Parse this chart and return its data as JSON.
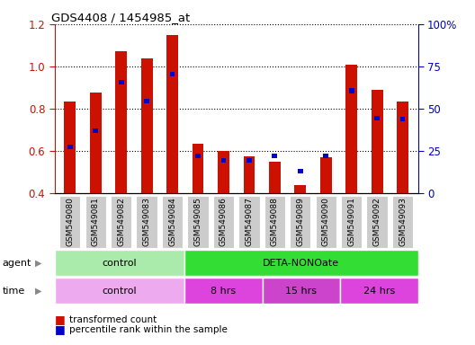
{
  "title": "GDS4408 / 1454985_at",
  "samples": [
    "GSM549080",
    "GSM549081",
    "GSM549082",
    "GSM549083",
    "GSM549084",
    "GSM549085",
    "GSM549086",
    "GSM549087",
    "GSM549088",
    "GSM549089",
    "GSM549090",
    "GSM549091",
    "GSM549092",
    "GSM549093"
  ],
  "red_values": [
    0.835,
    0.875,
    1.07,
    1.04,
    1.15,
    0.635,
    0.6,
    0.575,
    0.55,
    0.44,
    0.57,
    1.01,
    0.89,
    0.835
  ],
  "blue_values": [
    0.62,
    0.695,
    0.925,
    0.835,
    0.965,
    0.575,
    0.555,
    0.555,
    0.575,
    0.505,
    0.575,
    0.885,
    0.755,
    0.75
  ],
  "ylim_left": [
    0.4,
    1.2
  ],
  "ylim_right": [
    0,
    100
  ],
  "yticks_left": [
    0.4,
    0.6,
    0.8,
    1.0,
    1.2
  ],
  "yticks_right": [
    0,
    25,
    50,
    75,
    100
  ],
  "ytick_labels_right": [
    "0",
    "25",
    "50",
    "75",
    "100%"
  ],
  "bar_color": "#cc1100",
  "blue_color": "#0000cc",
  "agent_control_color": "#aaeaaa",
  "agent_deta_color": "#33dd33",
  "time_control_color": "#eeaaee",
  "time_hrs8_color": "#dd44dd",
  "time_hrs15_color": "#cc44cc",
  "time_hrs24_color": "#dd44dd",
  "agent_control_label": "control",
  "agent_deta_label": "DETA-NONOate",
  "time_labels": [
    "control",
    "8 hrs",
    "15 hrs",
    "24 hrs"
  ],
  "bar_width": 0.45,
  "tick_label_bg": "#cccccc",
  "left_label_color": "#888888",
  "arrow_color": "#888888"
}
